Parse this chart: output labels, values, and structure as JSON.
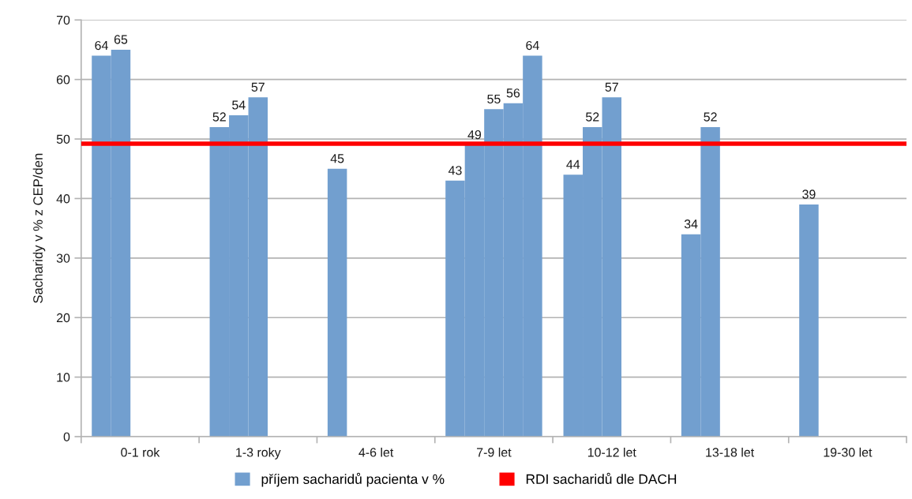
{
  "chart_data": {
    "type": "bar",
    "ylabel": "Sacharidy v % z CEP/den",
    "categories": [
      "0-1 rok",
      "1-3 roky",
      "4-6 let",
      "7-9 let",
      "10-12 let",
      "13-18 let",
      "19-30 let"
    ],
    "series": [
      {
        "name": "příjem sacharidů pacienta v %",
        "color": "#729fcf",
        "values": [
          64,
          52,
          45,
          43,
          44,
          34,
          39
        ]
      },
      {
        "color": "#729fcf",
        "values": [
          65,
          54,
          null,
          49,
          52,
          52,
          null
        ]
      },
      {
        "color": "#729fcf",
        "values": [
          null,
          57,
          null,
          55,
          57,
          null,
          null
        ]
      },
      {
        "color": "#729fcf",
        "values": [
          null,
          null,
          null,
          56,
          null,
          null,
          null
        ]
      },
      {
        "color": "#729fcf",
        "values": [
          null,
          null,
          null,
          64,
          null,
          null,
          null
        ]
      }
    ],
    "ylim": [
      0,
      70
    ],
    "yticks": [
      0,
      10,
      20,
      30,
      40,
      50,
      60,
      70
    ],
    "grid": "y",
    "data_labels": true,
    "legend": "bottom",
    "ref_lines": [
      {
        "axis": "y",
        "value": 49.2,
        "label": "RDI sacharidů dle DACH",
        "color": "#ff0000"
      }
    ]
  }
}
